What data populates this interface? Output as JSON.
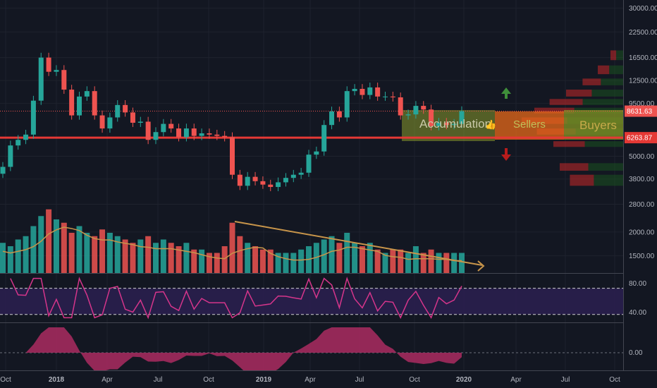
{
  "chart_data": {
    "type": "candlestick",
    "price_axis_labels": [
      "30000.00",
      "22500.00",
      "16500.00",
      "12500.00",
      "9500.00",
      "5000.00",
      "3800.00",
      "2800.00",
      "2000.00",
      "1500.00"
    ],
    "price_ticks": [
      30000,
      22500,
      16500,
      12500,
      9500,
      5000,
      3800,
      2800,
      2000,
      1500
    ],
    "price_scale": "log",
    "price_range": [
      1250,
      32000
    ],
    "last_price_label": "8631.63",
    "support_price_label": "6263.87",
    "last_price": 8631.63,
    "support_price": 6263.87,
    "time_axis_labels": [
      "Oct",
      "2018",
      "Apr",
      "Jul",
      "Oct",
      "2019",
      "Apr",
      "Jul",
      "Oct",
      "2020",
      "Apr",
      "Jul",
      "Oct"
    ],
    "annotations": {
      "accumulation": "Accumulation",
      "sellers": "Sellers",
      "buyers": "Buyers",
      "thumbs_up": "👍"
    },
    "rsi_axis_labels": [
      "80.00",
      "40.00"
    ],
    "rsi_levels": [
      70,
      30
    ],
    "rsi_range": [
      20,
      90
    ],
    "osc_axis_label": "0.00",
    "closes": [
      {
        "t": "2017-09-25",
        "c": 4400
      },
      {
        "t": "2017-10-09",
        "c": 5700
      },
      {
        "t": "2017-10-23",
        "c": 6100
      },
      {
        "t": "2017-11-06",
        "c": 6500
      },
      {
        "t": "2017-11-20",
        "c": 9800
      },
      {
        "t": "2017-12-04",
        "c": 16500
      },
      {
        "t": "2017-12-18",
        "c": 13900
      },
      {
        "t": "2018-01-01",
        "c": 14200
      },
      {
        "t": "2018-01-15",
        "c": 11200
      },
      {
        "t": "2018-01-29",
        "c": 8200
      },
      {
        "t": "2018-02-12",
        "c": 10300
      },
      {
        "t": "2018-02-26",
        "c": 11000
      },
      {
        "t": "2018-03-12",
        "c": 8200
      },
      {
        "t": "2018-03-26",
        "c": 7000
      },
      {
        "t": "2018-04-09",
        "c": 8000
      },
      {
        "t": "2018-04-23",
        "c": 9300
      },
      {
        "t": "2018-05-07",
        "c": 8500
      },
      {
        "t": "2018-05-21",
        "c": 7500
      },
      {
        "t": "2018-06-04",
        "c": 7600
      },
      {
        "t": "2018-06-18",
        "c": 6100
      },
      {
        "t": "2018-07-02",
        "c": 6700
      },
      {
        "t": "2018-07-16",
        "c": 7400
      },
      {
        "t": "2018-07-30",
        "c": 7000
      },
      {
        "t": "2018-08-13",
        "c": 6300
      },
      {
        "t": "2018-08-27",
        "c": 7000
      },
      {
        "t": "2018-09-10",
        "c": 6400
      },
      {
        "t": "2018-09-24",
        "c": 6600
      },
      {
        "t": "2018-10-08",
        "c": 6500
      },
      {
        "t": "2018-10-22",
        "c": 6400
      },
      {
        "t": "2018-11-05",
        "c": 6300
      },
      {
        "t": "2018-11-19",
        "c": 4000
      },
      {
        "t": "2018-12-03",
        "c": 3500
      },
      {
        "t": "2018-12-17",
        "c": 3900
      },
      {
        "t": "2018-12-31",
        "c": 3700
      },
      {
        "t": "2019-01-14",
        "c": 3550
      },
      {
        "t": "2019-01-28",
        "c": 3450
      },
      {
        "t": "2019-02-11",
        "c": 3650
      },
      {
        "t": "2019-02-25",
        "c": 3850
      },
      {
        "t": "2019-03-11",
        "c": 4000
      },
      {
        "t": "2019-03-25",
        "c": 4100
      },
      {
        "t": "2019-04-08",
        "c": 5100
      },
      {
        "t": "2019-04-22",
        "c": 5300
      },
      {
        "t": "2019-05-06",
        "c": 7300
      },
      {
        "t": "2019-05-20",
        "c": 8600
      },
      {
        "t": "2019-06-03",
        "c": 8000
      },
      {
        "t": "2019-06-17",
        "c": 11000
      },
      {
        "t": "2019-07-01",
        "c": 11300
      },
      {
        "t": "2019-07-15",
        "c": 10500
      },
      {
        "t": "2019-07-29",
        "c": 11500
      },
      {
        "t": "2019-08-12",
        "c": 10300
      },
      {
        "t": "2019-08-26",
        "c": 10300
      },
      {
        "t": "2019-09-09",
        "c": 10200
      },
      {
        "t": "2019-09-23",
        "c": 8200
      },
      {
        "t": "2019-10-07",
        "c": 8300
      },
      {
        "t": "2019-10-21",
        "c": 9200
      },
      {
        "t": "2019-11-04",
        "c": 8800
      },
      {
        "t": "2019-11-18",
        "c": 7200
      },
      {
        "t": "2019-12-02",
        "c": 7500
      },
      {
        "t": "2019-12-16",
        "c": 7300
      },
      {
        "t": "2019-12-30",
        "c": 7400
      },
      {
        "t": "2020-01-13",
        "c": 8631.63
      }
    ],
    "volume_relative": [
      0.45,
      0.4,
      0.5,
      0.55,
      0.7,
      0.85,
      0.95,
      0.8,
      0.75,
      0.6,
      0.7,
      0.6,
      0.55,
      0.65,
      0.6,
      0.55,
      0.5,
      0.45,
      0.5,
      0.55,
      0.45,
      0.5,
      0.45,
      0.4,
      0.45,
      0.35,
      0.35,
      0.3,
      0.3,
      0.4,
      0.75,
      0.55,
      0.45,
      0.4,
      0.35,
      0.35,
      0.3,
      0.3,
      0.3,
      0.35,
      0.4,
      0.45,
      0.5,
      0.55,
      0.45,
      0.6,
      0.45,
      0.4,
      0.45,
      0.35,
      0.3,
      0.35,
      0.35,
      0.3,
      0.4,
      0.3,
      0.35,
      0.3,
      0.3,
      0.3,
      0.3
    ],
    "colors": {
      "up": "#26a69a",
      "down": "#ef5350",
      "background": "#131722",
      "grid": "#1e222d",
      "support": "#e53935",
      "trendline": "#c8954a",
      "rsi": "#d6358b",
      "rsi_band": "#2a1f4e",
      "osc": "#a32a5d",
      "accumulation_fill": "#8a9a2b",
      "sellers_fill": "#e86a1a",
      "buyers_fill": "#7c8f24",
      "up_arrow": "#3f8f3a",
      "down_arrow": "#b71c1c"
    }
  }
}
